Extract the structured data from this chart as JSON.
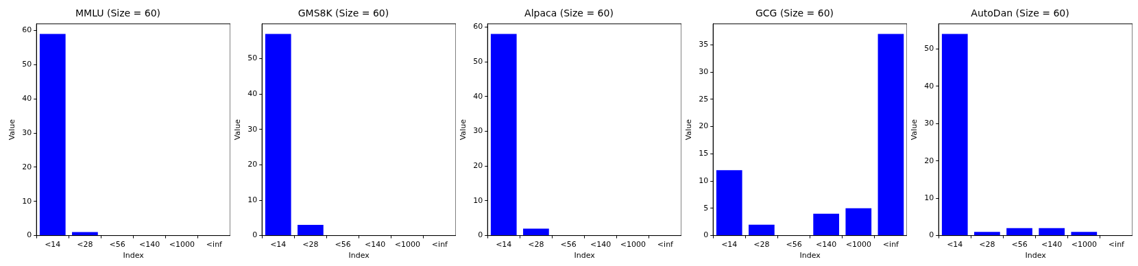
{
  "chart_data": [
    {
      "type": "bar",
      "title": "MMLU (Size = 60)",
      "xlabel": "Index",
      "ylabel": "Value",
      "categories": [
        "<14",
        "<28",
        "<56",
        "<140",
        "<1000",
        "<inf"
      ],
      "values": [
        59,
        1,
        0,
        0,
        0,
        0
      ],
      "color": "#0000ff",
      "ylim": [
        0,
        61.95
      ],
      "yticks": [
        0,
        10,
        20,
        30,
        40,
        50,
        60
      ],
      "grid": false,
      "legend": false
    },
    {
      "type": "bar",
      "title": "GMS8K (Size = 60)",
      "xlabel": "Index",
      "ylabel": "Value",
      "categories": [
        "<14",
        "<28",
        "<56",
        "<140",
        "<1000",
        "<inf"
      ],
      "values": [
        57,
        3,
        0,
        0,
        0,
        0
      ],
      "color": "#0000ff",
      "ylim": [
        0,
        59.85
      ],
      "yticks": [
        0,
        10,
        20,
        30,
        40,
        50
      ],
      "grid": false,
      "legend": false
    },
    {
      "type": "bar",
      "title": "Alpaca (Size = 60)",
      "xlabel": "Index",
      "ylabel": "Value",
      "categories": [
        "<14",
        "<28",
        "<56",
        "<140",
        "<1000",
        "<inf"
      ],
      "values": [
        58,
        2,
        0,
        0,
        0,
        0
      ],
      "color": "#0000ff",
      "ylim": [
        0,
        60.9
      ],
      "yticks": [
        0,
        10,
        20,
        30,
        40,
        50,
        60
      ],
      "grid": false,
      "legend": false
    },
    {
      "type": "bar",
      "title": "GCG (Size = 60)",
      "xlabel": "Index",
      "ylabel": "Value",
      "categories": [
        "<14",
        "<28",
        "<56",
        "<140",
        "<1000",
        "<inf"
      ],
      "values": [
        12,
        2,
        0,
        4,
        5,
        37
      ],
      "color": "#0000ff",
      "ylim": [
        0,
        38.85
      ],
      "yticks": [
        0,
        5,
        10,
        15,
        20,
        25,
        30,
        35
      ],
      "grid": false,
      "legend": false
    },
    {
      "type": "bar",
      "title": "AutoDan (Size = 60)",
      "xlabel": "Index",
      "ylabel": "Value",
      "categories": [
        "<14",
        "<28",
        "<56",
        "<140",
        "<1000",
        "<inf"
      ],
      "values": [
        54,
        1,
        2,
        2,
        1,
        0
      ],
      "color": "#0000ff",
      "ylim": [
        0,
        56.7
      ],
      "yticks": [
        0,
        10,
        20,
        30,
        40,
        50
      ],
      "grid": false,
      "legend": false
    }
  ]
}
